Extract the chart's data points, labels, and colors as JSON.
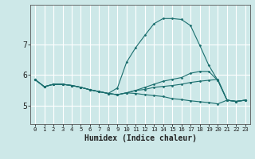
{
  "xlabel": "Humidex (Indice chaleur)",
  "xlim": [
    -0.5,
    23.5
  ],
  "ylim": [
    4.4,
    8.3
  ],
  "xticks": [
    0,
    1,
    2,
    3,
    4,
    5,
    6,
    7,
    8,
    9,
    10,
    11,
    12,
    13,
    14,
    15,
    16,
    17,
    18,
    19,
    20,
    21,
    22,
    23
  ],
  "yticks": [
    5,
    6,
    7
  ],
  "background_color": "#cde8e8",
  "grid_color": "#ffffff",
  "line_color": "#1a6e6e",
  "lines": [
    [
      5.85,
      5.62,
      5.7,
      5.7,
      5.66,
      5.6,
      5.52,
      5.46,
      5.4,
      5.36,
      5.42,
      5.5,
      5.6,
      5.7,
      5.8,
      5.86,
      5.92,
      6.06,
      6.12,
      6.12,
      5.82,
      5.18,
      5.14,
      5.18
    ],
    [
      5.85,
      5.62,
      5.7,
      5.7,
      5.66,
      5.6,
      5.52,
      5.46,
      5.4,
      5.58,
      6.42,
      6.9,
      7.3,
      7.68,
      7.85,
      7.85,
      7.82,
      7.62,
      6.98,
      6.32,
      5.82,
      5.18,
      5.14,
      5.18
    ],
    [
      5.85,
      5.62,
      5.7,
      5.7,
      5.66,
      5.6,
      5.52,
      5.46,
      5.4,
      5.36,
      5.42,
      5.4,
      5.36,
      5.33,
      5.3,
      5.23,
      5.2,
      5.16,
      5.13,
      5.1,
      5.06,
      5.18,
      5.14,
      5.18
    ],
    [
      5.85,
      5.62,
      5.7,
      5.7,
      5.66,
      5.6,
      5.52,
      5.46,
      5.4,
      5.36,
      5.42,
      5.5,
      5.53,
      5.6,
      5.63,
      5.66,
      5.7,
      5.76,
      5.8,
      5.83,
      5.86,
      5.18,
      5.14,
      5.18
    ]
  ]
}
